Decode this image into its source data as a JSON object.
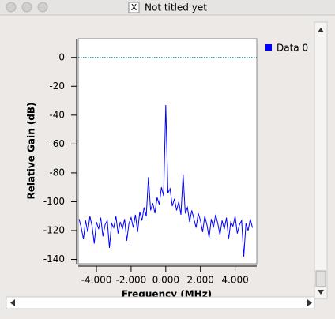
{
  "window_title": "Not titled yet",
  "chart_data": {
    "type": "line",
    "x_label": "Frequency (MHz)",
    "y_label": "Relative Gain (dB)",
    "x": [
      -5,
      -4.875,
      -4.75,
      -4.625,
      -4.5,
      -4.375,
      -4.25,
      -4.125,
      -4,
      -3.875,
      -3.75,
      -3.625,
      -3.5,
      -3.375,
      -3.25,
      -3.125,
      -3,
      -2.875,
      -2.75,
      -2.625,
      -2.5,
      -2.375,
      -2.25,
      -2.125,
      -2,
      -1.875,
      -1.75,
      -1.625,
      -1.5,
      -1.375,
      -1.25,
      -1.125,
      -1,
      -0.875,
      -0.75,
      -0.625,
      -0.5,
      -0.375,
      -0.25,
      -0.125,
      0,
      0.125,
      0.25,
      0.375,
      0.5,
      0.625,
      0.75,
      0.875,
      1,
      1.125,
      1.25,
      1.375,
      1.5,
      1.625,
      1.75,
      1.875,
      2,
      2.125,
      2.25,
      2.375,
      2.5,
      2.625,
      2.75,
      2.875,
      3,
      3.125,
      3.25,
      3.375,
      3.5,
      3.625,
      3.75,
      3.875,
      4,
      4.125,
      4.25,
      4.375,
      4.5,
      4.625,
      4.75,
      4.875,
      5
    ],
    "series": [
      {
        "name": "Data 0",
        "color": "#0000ff",
        "values": [
          -112,
          -118,
          -126,
          -113,
          -121,
          -110,
          -117,
          -129,
          -114,
          -119,
          -111,
          -124,
          -116,
          -113,
          -132,
          -115,
          -118,
          -110,
          -122,
          -114,
          -119,
          -112,
          -127,
          -115,
          -111,
          -118,
          -109,
          -121,
          -107,
          -113,
          -104,
          -110,
          -83,
          -106,
          -101,
          -108,
          -97,
          -102,
          -90,
          -96,
          -33,
          -94,
          -91,
          -103,
          -98,
          -106,
          -100,
          -109,
          -81,
          -108,
          -104,
          -114,
          -106,
          -112,
          -118,
          -108,
          -113,
          -121,
          -110,
          -116,
          -125,
          -112,
          -118,
          -109,
          -115,
          -123,
          -113,
          -119,
          -111,
          -126,
          -114,
          -117,
          -110,
          -122,
          -116,
          -113,
          -138,
          -115,
          -120,
          -112,
          -118
        ]
      }
    ],
    "hline": 0,
    "xlim": [
      -5.05,
      5.25
    ],
    "ylim": [
      -143,
      13
    ],
    "xticks": [
      {
        "value": -4,
        "label": "-4.000"
      },
      {
        "value": -2,
        "label": "-2.000"
      },
      {
        "value": 0,
        "label": "0.000"
      },
      {
        "value": 2,
        "label": "2.000"
      },
      {
        "value": 4,
        "label": "4.000"
      }
    ],
    "yticks": [
      0,
      -20,
      -40,
      -60,
      -80,
      -100,
      -120,
      -140
    ]
  }
}
